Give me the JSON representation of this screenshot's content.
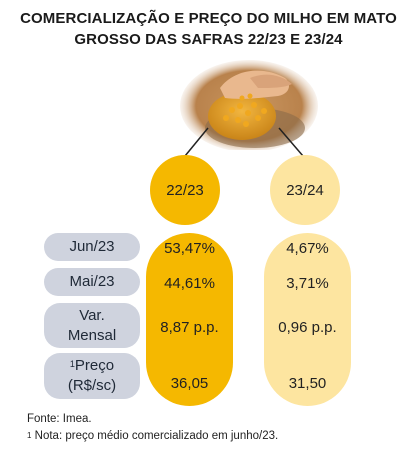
{
  "title": {
    "line1": "COMERCIALIZAÇÃO E PREÇO DO MILHO EM MATO",
    "line2": "GROSSO DAS SAFRAS 22/23 E 23/24"
  },
  "seasons": [
    "22/23",
    "23/24"
  ],
  "rows": [
    {
      "label": "Jun/23",
      "values": [
        "53,47%",
        "4,67%"
      ]
    },
    {
      "label": "Mai/23",
      "values": [
        "44,61%",
        "3,71%"
      ]
    },
    {
      "label_line1": "Var.",
      "label_line2": "Mensal",
      "values": [
        "8,87 p.p.",
        "0,96 p.p."
      ]
    },
    {
      "label_sup": "1",
      "label_line1": "Preço",
      "label_line2": "(R$/sc)",
      "values": [
        "36,05",
        "31,50"
      ]
    }
  ],
  "notes": {
    "source": "Fonte: Imea.",
    "footnote_mark": "1",
    "footnote": "Nota: preço médio comercializado em junho/23."
  },
  "colors": {
    "season_2223": "#f5b800",
    "season_2324": "#fde5a0",
    "label_bg": "#cfd3de"
  },
  "icons": {
    "photo": "hands-with-corn-grains-image"
  }
}
